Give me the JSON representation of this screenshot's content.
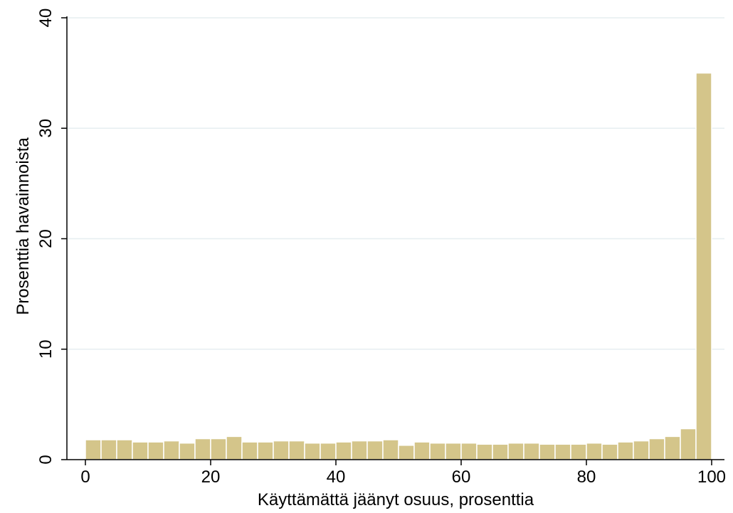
{
  "chart_data": {
    "type": "bar",
    "title": "",
    "xlabel": "Käyttämättä jäänyt osuus, prosenttia",
    "ylabel": "Prosenttia havainnoista",
    "xlim": [
      -2,
      102
    ],
    "ylim": [
      0,
      40
    ],
    "xticks": [
      0,
      20,
      40,
      60,
      80,
      100
    ],
    "yticks": [
      0,
      10,
      20,
      30,
      40
    ],
    "bin_width": 2.5,
    "grid": true,
    "bar_color": "#d4c58a",
    "bar_edge_color": "#ffffff",
    "bins": [
      {
        "start": 0,
        "value": 1.8
      },
      {
        "start": 2.5,
        "value": 1.8
      },
      {
        "start": 5,
        "value": 1.8
      },
      {
        "start": 7.5,
        "value": 1.6
      },
      {
        "start": 10,
        "value": 1.6
      },
      {
        "start": 12.5,
        "value": 1.7
      },
      {
        "start": 15,
        "value": 1.5
      },
      {
        "start": 17.5,
        "value": 1.9
      },
      {
        "start": 20,
        "value": 1.9
      },
      {
        "start": 22.5,
        "value": 2.1
      },
      {
        "start": 25,
        "value": 1.6
      },
      {
        "start": 27.5,
        "value": 1.6
      },
      {
        "start": 30,
        "value": 1.7
      },
      {
        "start": 32.5,
        "value": 1.7
      },
      {
        "start": 35,
        "value": 1.5
      },
      {
        "start": 37.5,
        "value": 1.5
      },
      {
        "start": 40,
        "value": 1.6
      },
      {
        "start": 42.5,
        "value": 1.7
      },
      {
        "start": 45,
        "value": 1.7
      },
      {
        "start": 47.5,
        "value": 1.8
      },
      {
        "start": 50,
        "value": 1.3
      },
      {
        "start": 52.5,
        "value": 1.6
      },
      {
        "start": 55,
        "value": 1.5
      },
      {
        "start": 57.5,
        "value": 1.5
      },
      {
        "start": 60,
        "value": 1.5
      },
      {
        "start": 62.5,
        "value": 1.4
      },
      {
        "start": 65,
        "value": 1.4
      },
      {
        "start": 67.5,
        "value": 1.5
      },
      {
        "start": 70,
        "value": 1.5
      },
      {
        "start": 72.5,
        "value": 1.4
      },
      {
        "start": 75,
        "value": 1.4
      },
      {
        "start": 77.5,
        "value": 1.4
      },
      {
        "start": 80,
        "value": 1.5
      },
      {
        "start": 82.5,
        "value": 1.4
      },
      {
        "start": 85,
        "value": 1.6
      },
      {
        "start": 87.5,
        "value": 1.7
      },
      {
        "start": 90,
        "value": 1.9
      },
      {
        "start": 92.5,
        "value": 2.1
      },
      {
        "start": 95,
        "value": 2.8
      },
      {
        "start": 97.5,
        "value": 35.0
      }
    ]
  }
}
